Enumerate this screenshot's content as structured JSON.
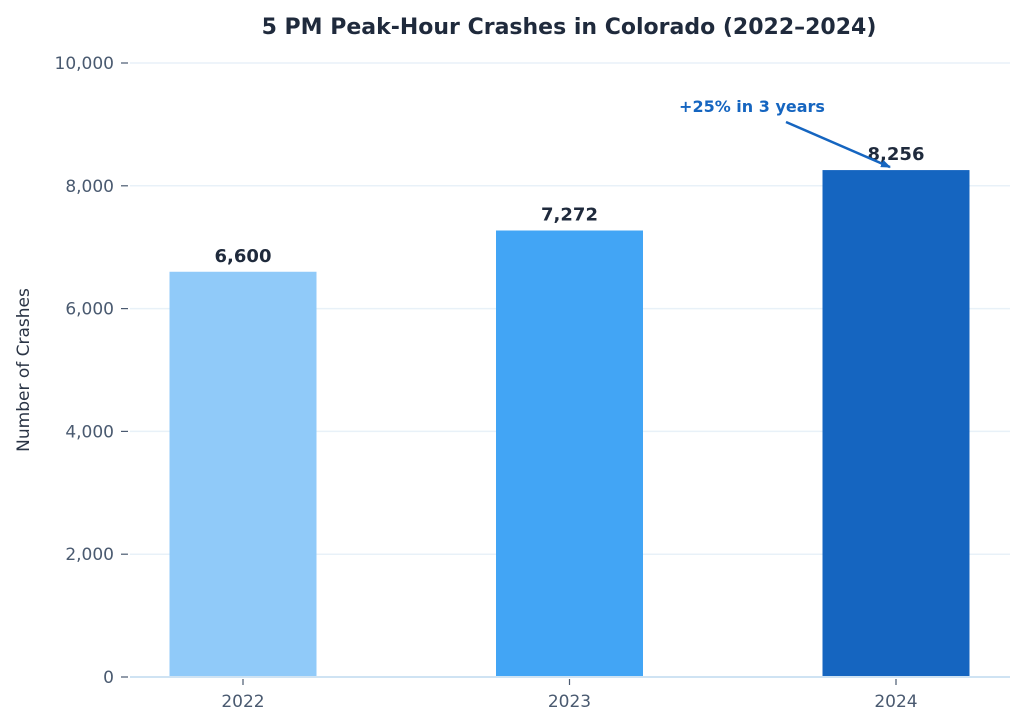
{
  "chart_data": {
    "type": "bar",
    "title": "5 PM Peak-Hour Crashes in Colorado (2022–2024)",
    "xlabel": "",
    "ylabel": "Number of Crashes",
    "categories": [
      "2022",
      "2023",
      "2024"
    ],
    "values": [
      6600,
      7272,
      8256
    ],
    "data_labels": [
      "6,600",
      "7,272",
      "8,256"
    ],
    "bar_colors": [
      "#90caf9",
      "#42a5f5",
      "#1565c0"
    ],
    "ylim": [
      0,
      10000
    ],
    "yticks": [
      0,
      2000,
      4000,
      6000,
      8000,
      10000
    ],
    "ytick_labels": [
      "0",
      "2,000",
      "4,000",
      "6,000",
      "8,000",
      "10,000"
    ],
    "grid": true,
    "annotation": {
      "text": "+25% in 3 years",
      "target_category": "2024",
      "color": "#1565c0"
    }
  }
}
